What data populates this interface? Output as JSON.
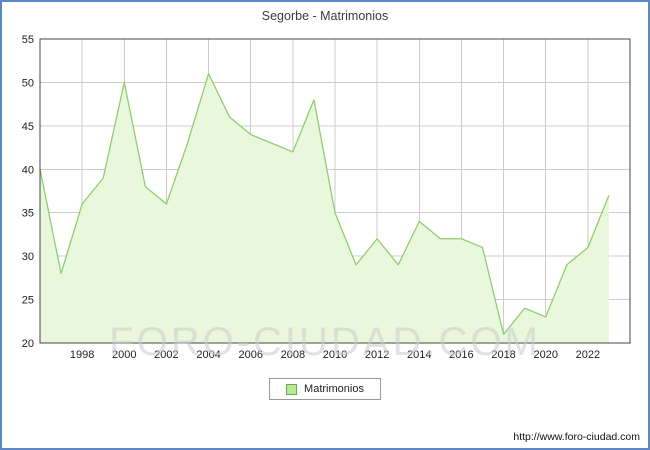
{
  "title": "Segorbe - Matrimonios",
  "legend_label": "Matrimonios",
  "source_url": "http://www.foro-ciudad.com",
  "watermark": "FORO-CIUDAD.COM",
  "colors": {
    "frame_border": "#5b87c7",
    "line": "#8fce6e",
    "fill": "#e9f8dc",
    "grid": "#cccccc",
    "axis_border": "#444444",
    "tick_text": "#222222",
    "title_text": "#3c3c3c",
    "watermark_text": "#cccccc",
    "legend_border": "#999999",
    "swatch_fill": "#b8e894",
    "swatch_border": "#66aa44"
  },
  "chart_data": {
    "type": "area",
    "title": "Segorbe - Matrimonios",
    "xlabel": "",
    "ylabel": "",
    "x": [
      1996,
      1997,
      1998,
      1999,
      2000,
      2001,
      2002,
      2003,
      2004,
      2005,
      2006,
      2007,
      2008,
      2009,
      2010,
      2011,
      2012,
      2013,
      2014,
      2015,
      2016,
      2017,
      2018,
      2019,
      2020,
      2021,
      2022,
      2023
    ],
    "values": [
      40,
      28,
      36,
      39,
      50,
      38,
      36,
      43,
      51,
      46,
      44,
      43,
      42,
      48,
      35,
      29,
      32,
      29,
      34,
      32,
      32,
      31,
      21,
      24,
      23,
      29,
      31,
      37
    ],
    "ylim": [
      20,
      55
    ],
    "yticks": [
      20,
      25,
      30,
      35,
      40,
      45,
      50,
      55
    ],
    "xticks": [
      1998,
      2000,
      2002,
      2004,
      2006,
      2008,
      2010,
      2012,
      2014,
      2016,
      2018,
      2020,
      2022
    ],
    "legend": [
      "Matrimonios"
    ],
    "legend_position": "bottom",
    "grid": true
  }
}
